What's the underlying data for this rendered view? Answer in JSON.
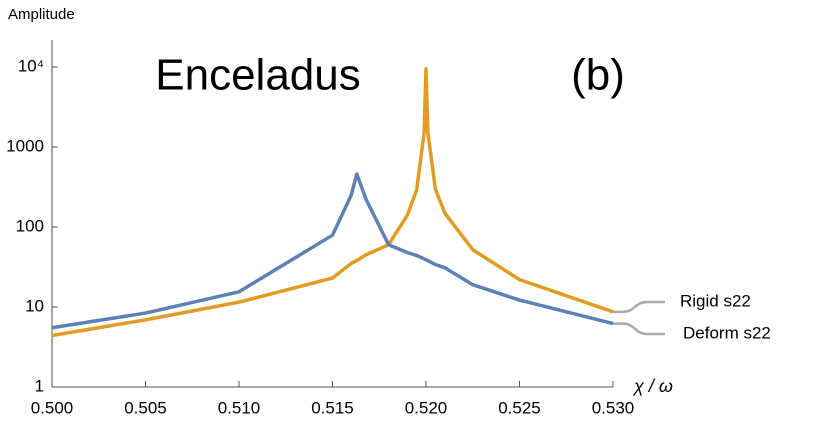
{
  "chart_data": {
    "type": "line",
    "title": "Enceladus",
    "annotation": "(b)",
    "x_label": "χ / ω",
    "y_label": "Amplitude",
    "x": [
      0.5,
      0.505,
      0.51,
      0.515,
      0.516,
      0.5163,
      0.5168,
      0.518,
      0.519,
      0.5195,
      0.5199,
      0.52,
      0.5201,
      0.5205,
      0.521,
      0.5225,
      0.525,
      0.53
    ],
    "series": [
      {
        "name": "Rigid s22",
        "color": "#e19c24",
        "values": [
          4.4,
          6.9,
          11.5,
          23,
          35,
          38,
          45,
          60,
          140,
          290,
          1500,
          9500,
          1500,
          300,
          150,
          52,
          22,
          8.7
        ]
      },
      {
        "name": "Deform s22",
        "color": "#5e81b5",
        "values": [
          5.5,
          8.4,
          15.5,
          79,
          250,
          460,
          220,
          60,
          48,
          44,
          40,
          39,
          38,
          34,
          31,
          19,
          12.2,
          6.2
        ]
      }
    ],
    "xlim": [
      0.5,
      0.53
    ],
    "xticks": [
      {
        "value": 0.5,
        "label": "0.500"
      },
      {
        "value": 0.505,
        "label": "0.505"
      },
      {
        "value": 0.51,
        "label": "0.510"
      },
      {
        "value": 0.515,
        "label": "0.515"
      },
      {
        "value": 0.52,
        "label": "0.520"
      },
      {
        "value": 0.525,
        "label": "0.525"
      },
      {
        "value": 0.53,
        "label": "0.530"
      }
    ],
    "ylim": [
      1,
      10000
    ],
    "yticks": [
      1,
      10,
      100,
      1000,
      {
        "value": 10000,
        "label": "10⁴"
      }
    ],
    "y_scale": "log"
  }
}
